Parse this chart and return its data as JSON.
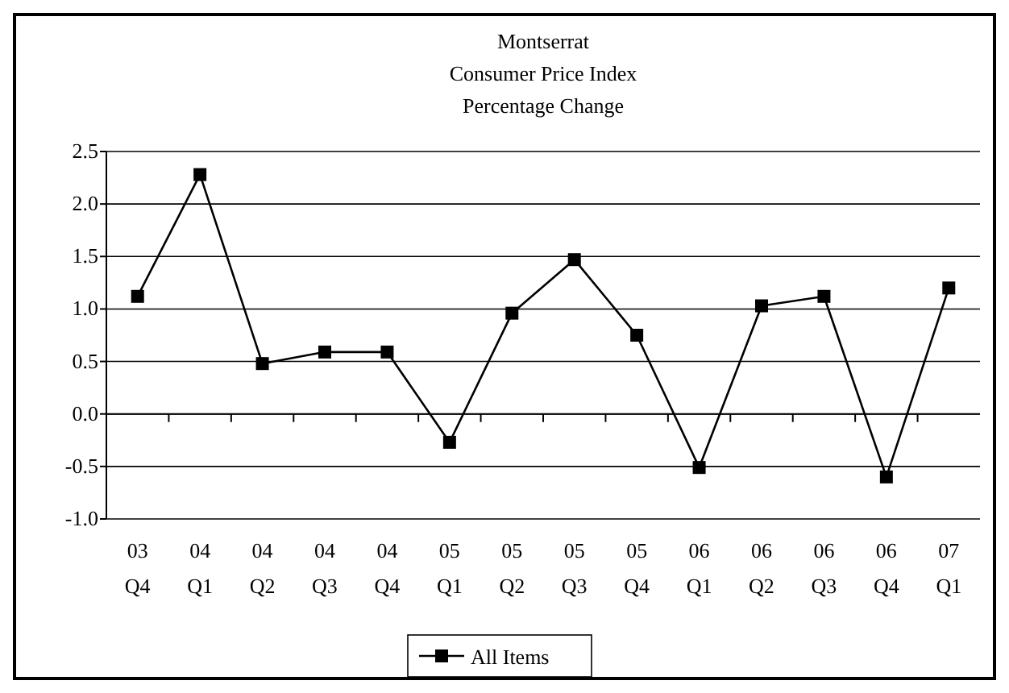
{
  "chart_data": {
    "type": "line",
    "title": "Montserrat\nConsumer Price Index\nPercentage Change",
    "categories": [
      "03\nQ4",
      "04\nQ1",
      "04\nQ2",
      "04\nQ3",
      "04\nQ4",
      "05\nQ1",
      "05\nQ2",
      "05\nQ3",
      "05\nQ4",
      "06\nQ1",
      "06\nQ2",
      "06\nQ3",
      "06\nQ4",
      "07\nQ1"
    ],
    "series": [
      {
        "name": "All Items",
        "color": "#000000",
        "values": [
          1.12,
          2.28,
          0.48,
          0.59,
          0.59,
          -0.27,
          0.96,
          1.47,
          0.75,
          -0.51,
          1.03,
          1.12,
          -0.6,
          1.2
        ]
      }
    ],
    "ylim": [
      -1,
      2.5
    ],
    "yticks": [
      {
        "value": -1,
        "label": "-1.0"
      },
      {
        "value": -0.5,
        "label": "-0.5"
      },
      {
        "value": 0,
        "label": "0.0"
      },
      {
        "value": 0.5,
        "label": "0.5"
      },
      {
        "value": 1,
        "label": "1.0"
      },
      {
        "value": 1.5,
        "label": "1.5"
      },
      {
        "value": 2,
        "label": "2.0"
      },
      {
        "value": 2.5,
        "label": "2.5"
      }
    ],
    "grid": "y",
    "legend": "bottom",
    "marker": "square",
    "line_style": "solid"
  }
}
